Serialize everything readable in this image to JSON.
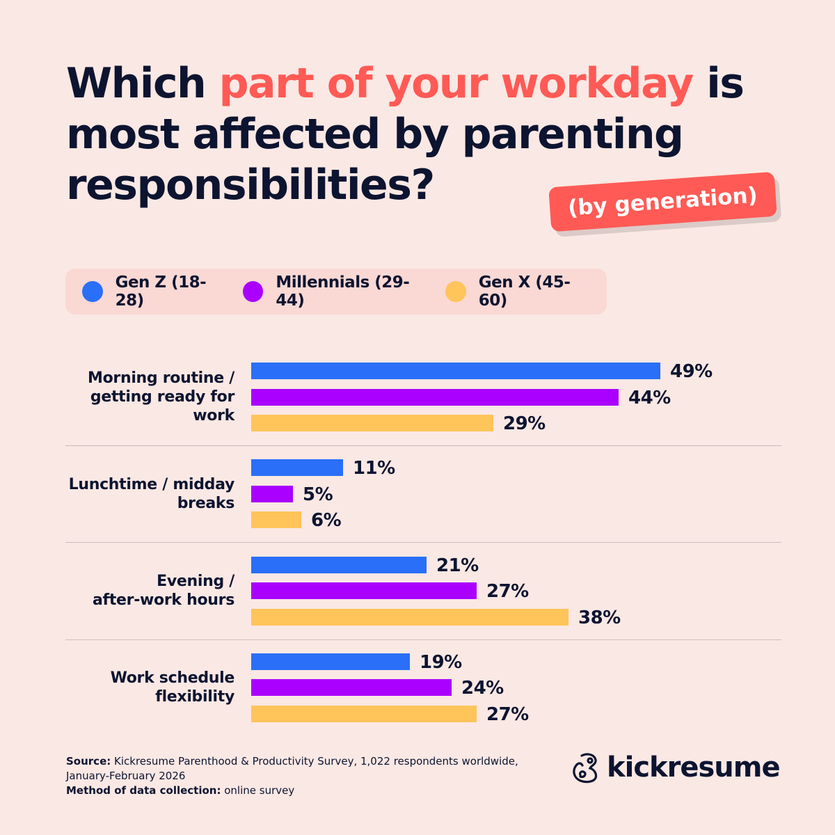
{
  "title": {
    "part1": "Which ",
    "highlight": "part of your workday",
    "part2": " is most affected by parenting responsibilities?"
  },
  "badge": "(by generation)",
  "colors": {
    "background": "#fae8e4",
    "text": "#0d1430",
    "accent": "#ff5a55"
  },
  "chart_data": {
    "type": "bar",
    "orientation": "horizontal",
    "unit": "%",
    "categories": [
      "Morning routine / getting ready for work",
      "Lunchtime / midday breaks",
      "Evening / after-work hours",
      "Work schedule flexibility"
    ],
    "category_lines": [
      [
        "Morning routine /",
        "getting ready for",
        "work"
      ],
      [
        "Lunchtime / midday",
        "breaks"
      ],
      [
        "Evening /",
        "after-work hours"
      ],
      [
        "Work schedule",
        "flexibility"
      ]
    ],
    "series": [
      {
        "name": "Gen Z (18-28)",
        "color": "#2a6ff7",
        "values": [
          49,
          11,
          21,
          19
        ]
      },
      {
        "name": "Millennials (29-44)",
        "color": "#aa00ff",
        "values": [
          44,
          5,
          27,
          24
        ]
      },
      {
        "name": "Gen X (45-60)",
        "color": "#ffc45a",
        "values": [
          29,
          6,
          38,
          27
        ]
      }
    ],
    "legend_position": "top",
    "grid": false
  },
  "footer": {
    "source_label": "Source:",
    "source_text": " Kickresume Parenthood & Productivity Survey, 1,022 respondents worldwide,",
    "source_text2": "January-February 2026",
    "method_label": "Method of data collection:",
    "method_text": " online survey"
  },
  "logo": {
    "text": "kickresume",
    "icon": "chameleon-logo-icon"
  }
}
